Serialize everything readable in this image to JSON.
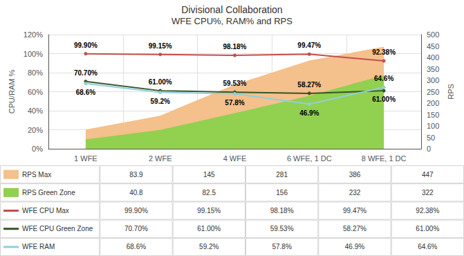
{
  "chart_data": {
    "type": "line",
    "title": "Divisional Collaboration",
    "subtitle": "WFE CPU%, RAM% and RPS",
    "categories": [
      "1 WFE",
      "2 WFE",
      "4 WFE",
      "6 WFE, 1 DC",
      "8 WFE, 1 DC"
    ],
    "ylabel": "CPU/RAM %",
    "y2label": "RPS",
    "ylim": [
      0,
      120
    ],
    "yticks": [
      {
        "value": 0,
        "label": "0%"
      },
      {
        "value": 20,
        "label": "20%"
      },
      {
        "value": 40,
        "label": "40%"
      },
      {
        "value": 60,
        "label": "60%"
      },
      {
        "value": 80,
        "label": "80%"
      },
      {
        "value": 100,
        "label": "100%"
      },
      {
        "value": 120,
        "label": "120%"
      }
    ],
    "y2lim": [
      0,
      500
    ],
    "y2ticks": [
      0,
      50,
      100,
      150,
      200,
      250,
      300,
      350,
      400,
      450,
      500
    ],
    "grid": true,
    "series": [
      {
        "name": "RPS Max",
        "type": "area",
        "axis": "y2",
        "color": "#F4C08C",
        "values": [
          83.9,
          145,
          281,
          386,
          447
        ]
      },
      {
        "name": "RPS Green Zone",
        "type": "area",
        "axis": "y2",
        "color": "#92D050",
        "values": [
          40.8,
          82.5,
          156,
          232,
          322
        ]
      },
      {
        "name": "WFE CPU Max",
        "type": "line",
        "color": "#C0504D",
        "values": [
          99.9,
          99.15,
          98.18,
          99.47,
          92.38
        ],
        "value_labels": [
          "99.90%",
          "99.15%",
          "98.18%",
          "99.47%",
          "92.38%"
        ],
        "data_labels": true
      },
      {
        "name": "WFE CPU Green Zone",
        "type": "line",
        "color": "#375623",
        "values": [
          70.7,
          61.0,
          59.53,
          58.27,
          61.0
        ],
        "value_labels": [
          "70.70%",
          "61.00%",
          "59.53%",
          "58.27%",
          "61.00%"
        ],
        "data_labels": true
      },
      {
        "name": "WFE RAM",
        "type": "line",
        "color": "#92CDDC",
        "values": [
          68.6,
          59.2,
          57.8,
          46.9,
          64.6
        ],
        "value_labels": [
          "68.6%",
          "59.2%",
          "57.8%",
          "46.9%",
          "64.6%"
        ],
        "data_labels": true
      }
    ]
  }
}
